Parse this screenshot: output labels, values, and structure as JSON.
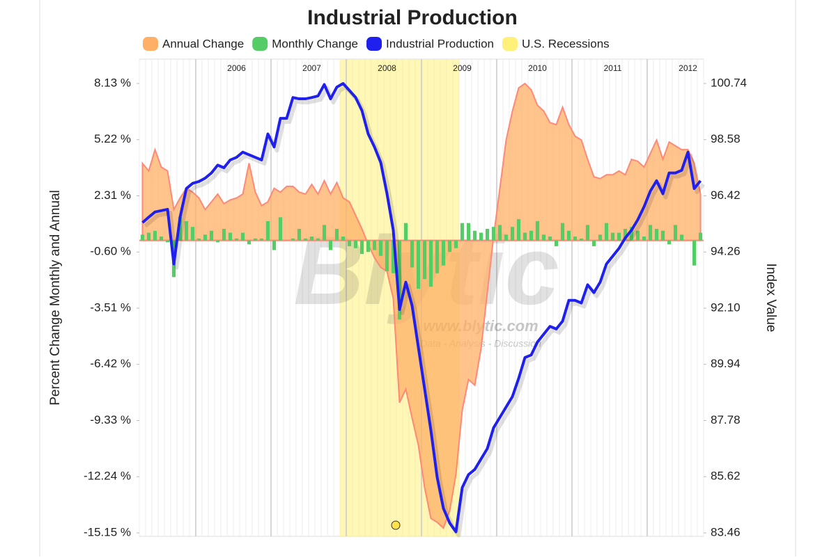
{
  "chart_data": {
    "type": "combo",
    "title": "Industrial Production",
    "y_label": "Percent Change Monthly and Annual",
    "y2_label": "Index Value",
    "watermark": [
      "Blytic",
      "www.blytic.com",
      "Data - Analysis - Discussion"
    ],
    "categories": [
      null,
      null,
      null,
      null,
      null,
      null,
      null,
      null,
      null,
      null,
      null,
      null,
      null,
      null,
      null,
      "2006",
      null,
      null,
      null,
      null,
      null,
      null,
      null,
      null,
      null,
      null,
      null,
      "2007",
      null,
      null,
      null,
      null,
      null,
      null,
      null,
      null,
      null,
      null,
      null,
      "2008",
      null,
      null,
      null,
      null,
      null,
      null,
      null,
      null,
      null,
      null,
      null,
      "2009",
      null,
      null,
      null,
      null,
      null,
      null,
      null,
      null,
      null,
      null,
      null,
      "2010",
      null,
      null,
      null,
      null,
      null,
      null,
      null,
      null,
      null,
      null,
      null,
      "2011",
      null,
      null,
      null,
      null,
      null,
      null,
      null,
      null,
      null,
      null,
      null,
      "2012",
      null,
      null
    ],
    "ylim": [
      -15.15,
      8.13
    ],
    "yticks": [
      {
        "value": 8.13,
        "label": "8.13 %"
      },
      {
        "value": 5.22,
        "label": "5.22 %"
      },
      {
        "value": 2.31,
        "label": "2.31 %"
      },
      {
        "value": -0.6,
        "label": "-0.60 %"
      },
      {
        "value": -3.51,
        "label": "-3.51 %"
      },
      {
        "value": -6.42,
        "label": "-6.42 %"
      },
      {
        "value": -9.33,
        "label": "-9.33 %"
      },
      {
        "value": -12.24,
        "label": "-12.24 %"
      },
      {
        "value": -15.15,
        "label": "-15.15 %"
      }
    ],
    "y2lim": [
      83.46,
      100.74
    ],
    "y2ticks": [
      100.74,
      98.58,
      96.42,
      94.26,
      {
        "value": 92.1,
        "label": "92.10"
      },
      89.94,
      87.78,
      85.62,
      83.46
    ],
    "recession": {
      "name": "U.S. Recessions",
      "color": "#fff07a",
      "range": [
        32,
        50
      ]
    },
    "series": [
      {
        "name": "Annual Change",
        "type": "area",
        "color": "#ffb066",
        "axis": "y",
        "values": [
          3.99,
          3.6,
          4.7,
          3.8,
          3.6,
          1.6,
          2.2,
          2.7,
          2.5,
          2.2,
          1.6,
          2.0,
          2.4,
          1.9,
          2.1,
          2.2,
          2.4,
          4.0,
          2.5,
          1.8,
          2.0,
          2.7,
          2.5,
          2.8,
          2.8,
          2.5,
          2.4,
          2.9,
          2.4,
          3.1,
          2.4,
          3.0,
          2.2,
          2.0,
          1.3,
          0.6,
          -0.2,
          -0.9,
          -1.4,
          -1.6,
          -3.0,
          -8.4,
          -7.7,
          -9.2,
          -10.6,
          -12.8,
          -14.4,
          -14.6,
          -14.9,
          -14.0,
          -12.1,
          -8.8,
          -7.2,
          -7.5,
          -5.6,
          -2.7,
          0.2,
          2.7,
          5.2,
          6.7,
          7.9,
          8.13,
          7.8,
          7.0,
          6.7,
          6.1,
          6.0,
          6.9,
          6.0,
          5.4,
          5.2,
          4.2,
          3.3,
          3.2,
          3.4,
          3.4,
          3.6,
          3.4,
          4.2,
          4.1,
          3.8,
          4.5,
          5.2,
          4.2,
          5.1,
          4.9,
          4.7,
          4.7,
          4.0,
          2.4
        ]
      },
      {
        "name": "Monthly Change",
        "type": "bar",
        "color": "#55cc66",
        "axis": "y",
        "values": [
          0.3,
          0.4,
          0.5,
          0.2,
          -0.1,
          -1.9,
          1.2,
          1.0,
          0.7,
          0.1,
          0.3,
          0.5,
          -0.1,
          0.6,
          0.4,
          0.1,
          0.4,
          -0.2,
          0.1,
          0.1,
          1.0,
          -0.5,
          1.2,
          0.0,
          0.1,
          0.6,
          0.1,
          0.2,
          0.1,
          0.8,
          -0.5,
          0.6,
          0.2,
          -0.3,
          -0.4,
          -0.7,
          -0.6,
          -0.5,
          -0.8,
          -1.6,
          -1.7,
          -4.1,
          0.9,
          -1.4,
          -2.5,
          -2.0,
          -2.4,
          -1.7,
          -1.3,
          -0.6,
          -0.4,
          0.9,
          0.9,
          0.5,
          0.4,
          0.6,
          0.7,
          0.8,
          0.3,
          0.7,
          1.1,
          0.4,
          0.5,
          1.0,
          0.3,
          0.2,
          -0.3,
          0.9,
          0.5,
          0.2,
          0.1,
          0.8,
          -0.3,
          0.3,
          0.9,
          0.4,
          0.4,
          0.6,
          0.7,
          0.5,
          0.2,
          0.8,
          0.6,
          0.5,
          -0.2,
          0.8,
          0.3,
          0.0,
          -1.3,
          0.4
        ]
      },
      {
        "name": "Industrial Production",
        "type": "line",
        "color": "#1f1fee",
        "axis": "y2",
        "values": [
          95.39,
          95.6,
          95.8,
          95.85,
          95.9,
          93.8,
          95.6,
          96.7,
          96.9,
          96.97,
          97.1,
          97.3,
          97.6,
          97.5,
          97.8,
          97.9,
          98.1,
          98.0,
          97.9,
          97.8,
          98.8,
          98.3,
          99.4,
          99.4,
          100.2,
          100.15,
          100.15,
          100.2,
          100.26,
          100.7,
          100.15,
          100.6,
          100.74,
          100.47,
          100.2,
          99.7,
          98.8,
          98.3,
          97.7,
          96.5,
          95.1,
          92.05,
          93.1,
          92.2,
          90.6,
          89.0,
          87.4,
          85.6,
          84.4,
          83.84,
          83.5,
          85.2,
          85.7,
          85.9,
          86.3,
          86.7,
          87.5,
          87.9,
          88.3,
          88.7,
          89.4,
          90.2,
          90.3,
          90.8,
          91.1,
          91.4,
          91.3,
          91.6,
          92.4,
          92.4,
          92.3,
          93.0,
          92.7,
          93.1,
          93.8,
          94.1,
          94.4,
          94.8,
          95.1,
          95.5,
          96.0,
          96.6,
          97.0,
          96.5,
          97.3,
          97.3,
          97.4,
          98.1,
          96.7,
          97.0
        ]
      }
    ]
  }
}
